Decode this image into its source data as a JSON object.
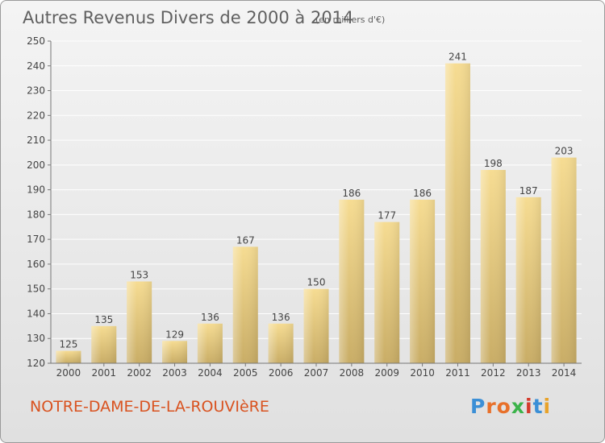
{
  "header": {
    "title": "Autres Revenus Divers de 2000 à 2014",
    "unit": "(en milliers d'€)"
  },
  "footer": {
    "location": "NOTRE-DAME-DE-LA-ROUVIèRE",
    "brand": "Proxiti"
  },
  "colors": {
    "bar_light": "#f6dc92",
    "bar_dark": "#c9ad66",
    "location": "#d9521f",
    "brand_letters": [
      "#3b8fd6",
      "#e8702a",
      "#e8702a",
      "#3bb34a",
      "#d43b2c",
      "#3b8fd6",
      "#e8a32a"
    ]
  },
  "chart_data": {
    "type": "bar",
    "title": "Autres Revenus Divers de 2000 à 2014",
    "subtitle": "(en milliers d'€)",
    "xlabel": "",
    "ylabel": "",
    "categories": [
      "2000",
      "2001",
      "2002",
      "2003",
      "2004",
      "2005",
      "2006",
      "2007",
      "2008",
      "2009",
      "2010",
      "2011",
      "2012",
      "2013",
      "2014"
    ],
    "values": [
      125,
      135,
      153,
      129,
      136,
      167,
      136,
      150,
      186,
      177,
      186,
      241,
      198,
      187,
      203
    ],
    "ylim": [
      120,
      250
    ],
    "yticks": [
      120,
      130,
      140,
      150,
      160,
      170,
      180,
      190,
      200,
      210,
      220,
      230,
      240,
      250
    ],
    "grid": true,
    "data_labels": true,
    "legend": "none"
  }
}
